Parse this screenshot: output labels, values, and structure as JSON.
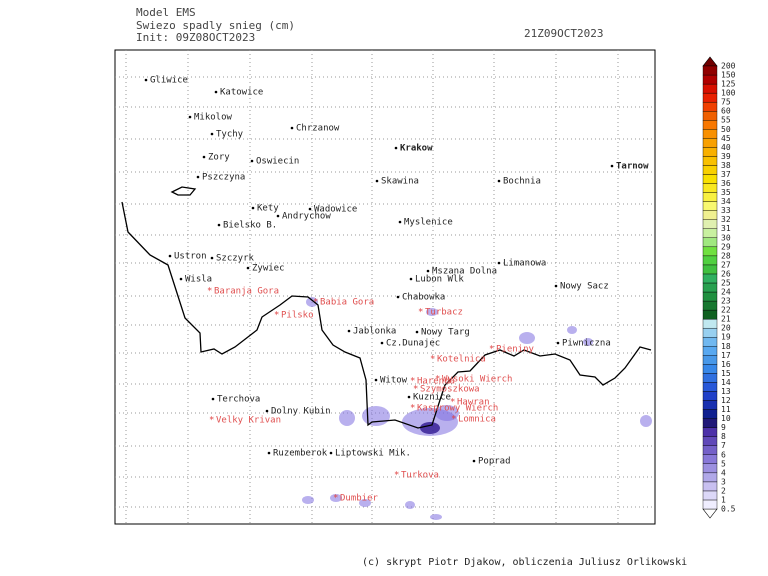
{
  "header": {
    "model": "Model EMS",
    "product": "Swiezo spadly snieg (cm)",
    "init": "Init: 09Z08OCT2023",
    "valid": "21Z09OCT2023"
  },
  "cities": [
    {
      "name": "Gliwice"
    },
    {
      "name": "Katowice"
    },
    {
      "name": "Mikolow"
    },
    {
      "name": "Tychy"
    },
    {
      "name": "Chrzanow"
    },
    {
      "name": "Zory"
    },
    {
      "name": "Oswiecin"
    },
    {
      "name": "Krakow"
    },
    {
      "name": "Tarnow"
    },
    {
      "name": "Pszczyna"
    },
    {
      "name": "Skawina"
    },
    {
      "name": "Bochnia"
    },
    {
      "name": "Kety"
    },
    {
      "name": "Wadowice"
    },
    {
      "name": "Andrychow"
    },
    {
      "name": "Bielsko B."
    },
    {
      "name": "Myslenice"
    },
    {
      "name": "Ustron"
    },
    {
      "name": "Szczyrk"
    },
    {
      "name": "Zywiec"
    },
    {
      "name": "Limanowa"
    },
    {
      "name": "Mszana Dolna"
    },
    {
      "name": "Lubon Wlk"
    },
    {
      "name": "Wisla"
    },
    {
      "name": "Nowy Sacz"
    },
    {
      "name": "Chabowka"
    },
    {
      "name": "Jablonka"
    },
    {
      "name": "Nowy Targ"
    },
    {
      "name": "Cz.Dunajec"
    },
    {
      "name": "Piwniczna"
    },
    {
      "name": "Witow"
    },
    {
      "name": "Kuznice"
    },
    {
      "name": "Terchova"
    },
    {
      "name": "Dolny Kubin"
    },
    {
      "name": "Ruzemberok"
    },
    {
      "name": "Liptowski Mik."
    },
    {
      "name": "Poprad"
    }
  ],
  "peaks": [
    {
      "name": "Baranja Gora"
    },
    {
      "name": "Babia Gora"
    },
    {
      "name": "Pilsko"
    },
    {
      "name": "Turbacz"
    },
    {
      "name": "Pieniny"
    },
    {
      "name": "Kotelnica"
    },
    {
      "name": "Harenda"
    },
    {
      "name": "Wysoki Wierch"
    },
    {
      "name": "Szymoszkowa"
    },
    {
      "name": "Hawran"
    },
    {
      "name": "Kasprowy Wierch"
    },
    {
      "name": "Lomnica"
    },
    {
      "name": "Velky Krivan"
    },
    {
      "name": "Turkova"
    },
    {
      "name": "Dumbier"
    }
  ],
  "legend": {
    "labels": [
      0.5,
      1,
      2,
      3,
      4,
      5,
      6,
      7,
      8,
      9,
      10,
      11,
      12,
      13,
      14,
      15,
      16,
      17,
      18,
      19,
      20,
      21,
      22,
      23,
      24,
      25,
      26,
      27,
      28,
      29,
      30,
      31,
      32,
      33,
      34,
      35,
      36,
      37,
      38,
      39,
      40,
      45,
      50,
      55,
      60,
      75,
      100,
      125,
      150,
      200
    ],
    "colors": [
      "#f0eeff",
      "#dcd8f8",
      "#c8c0f0",
      "#b0a8e8",
      "#9c90e0",
      "#8878d8",
      "#7460c8",
      "#6048b8",
      "#4c30a8",
      "#201878",
      "#102090",
      "#1830b0",
      "#2040c8",
      "#2858d8",
      "#3070e0",
      "#3888e8",
      "#4898e8",
      "#58a8f0",
      "#70b8f0",
      "#98d0f0",
      "#c0e8f0",
      "#106020",
      "#187830",
      "#209040",
      "#28a050",
      "#30b060",
      "#40c040",
      "#50d040",
      "#70e040",
      "#a0e880",
      "#c8f0a0",
      "#e0f0b0",
      "#f0f090",
      "#f8f870",
      "#f8f040",
      "#f8e820",
      "#f8e000",
      "#f8d000",
      "#f8c000",
      "#f8b000",
      "#f8a000",
      "#f89000",
      "#f87800",
      "#f06000",
      "#f04000",
      "#e82000",
      "#d81000",
      "#b00000",
      "#900000"
    ]
  },
  "footer": "(c) skrypt Piotr Djakow, obliczenia Juliusz Orlikowski"
}
